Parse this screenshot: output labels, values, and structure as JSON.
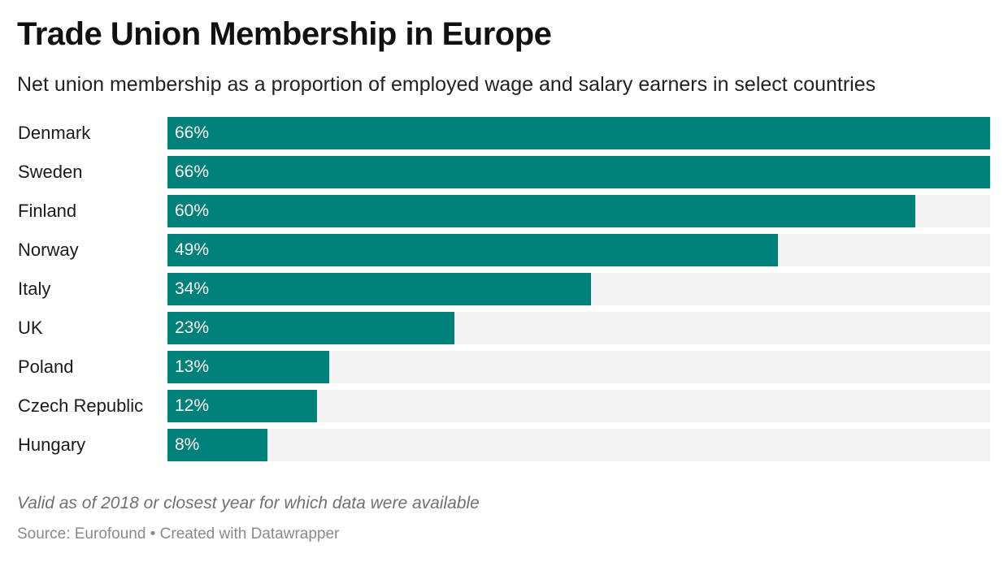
{
  "header": {
    "title": "Trade Union Membership in Europe",
    "subtitle": "Net union membership as a proportion of employed wage and salary earners in select countries"
  },
  "footer": {
    "note": "Valid as of 2018 or closest year for which data were available",
    "source": "Source: Eurofound • Created with Datawrapper"
  },
  "colors": {
    "bar": "#00807a",
    "track": "#f2f2f2",
    "value_label": "#ffffff"
  },
  "chart_data": {
    "type": "bar",
    "orientation": "horizontal",
    "title": "Trade Union Membership in Europe",
    "subtitle": "Net union membership as a proportion of employed wage and salary earners in select countries",
    "categories": [
      "Denmark",
      "Sweden",
      "Finland",
      "Norway",
      "Italy",
      "UK",
      "Poland",
      "Czech Republic",
      "Hungary"
    ],
    "values": [
      66,
      66,
      60,
      49,
      34,
      23,
      13,
      12,
      8
    ],
    "value_labels": [
      "66%",
      "66%",
      "60%",
      "49%",
      "34%",
      "23%",
      "13%",
      "12%",
      "8%"
    ],
    "unit": "%",
    "xlim": [
      0,
      66
    ],
    "grid": false,
    "legend": "none"
  }
}
